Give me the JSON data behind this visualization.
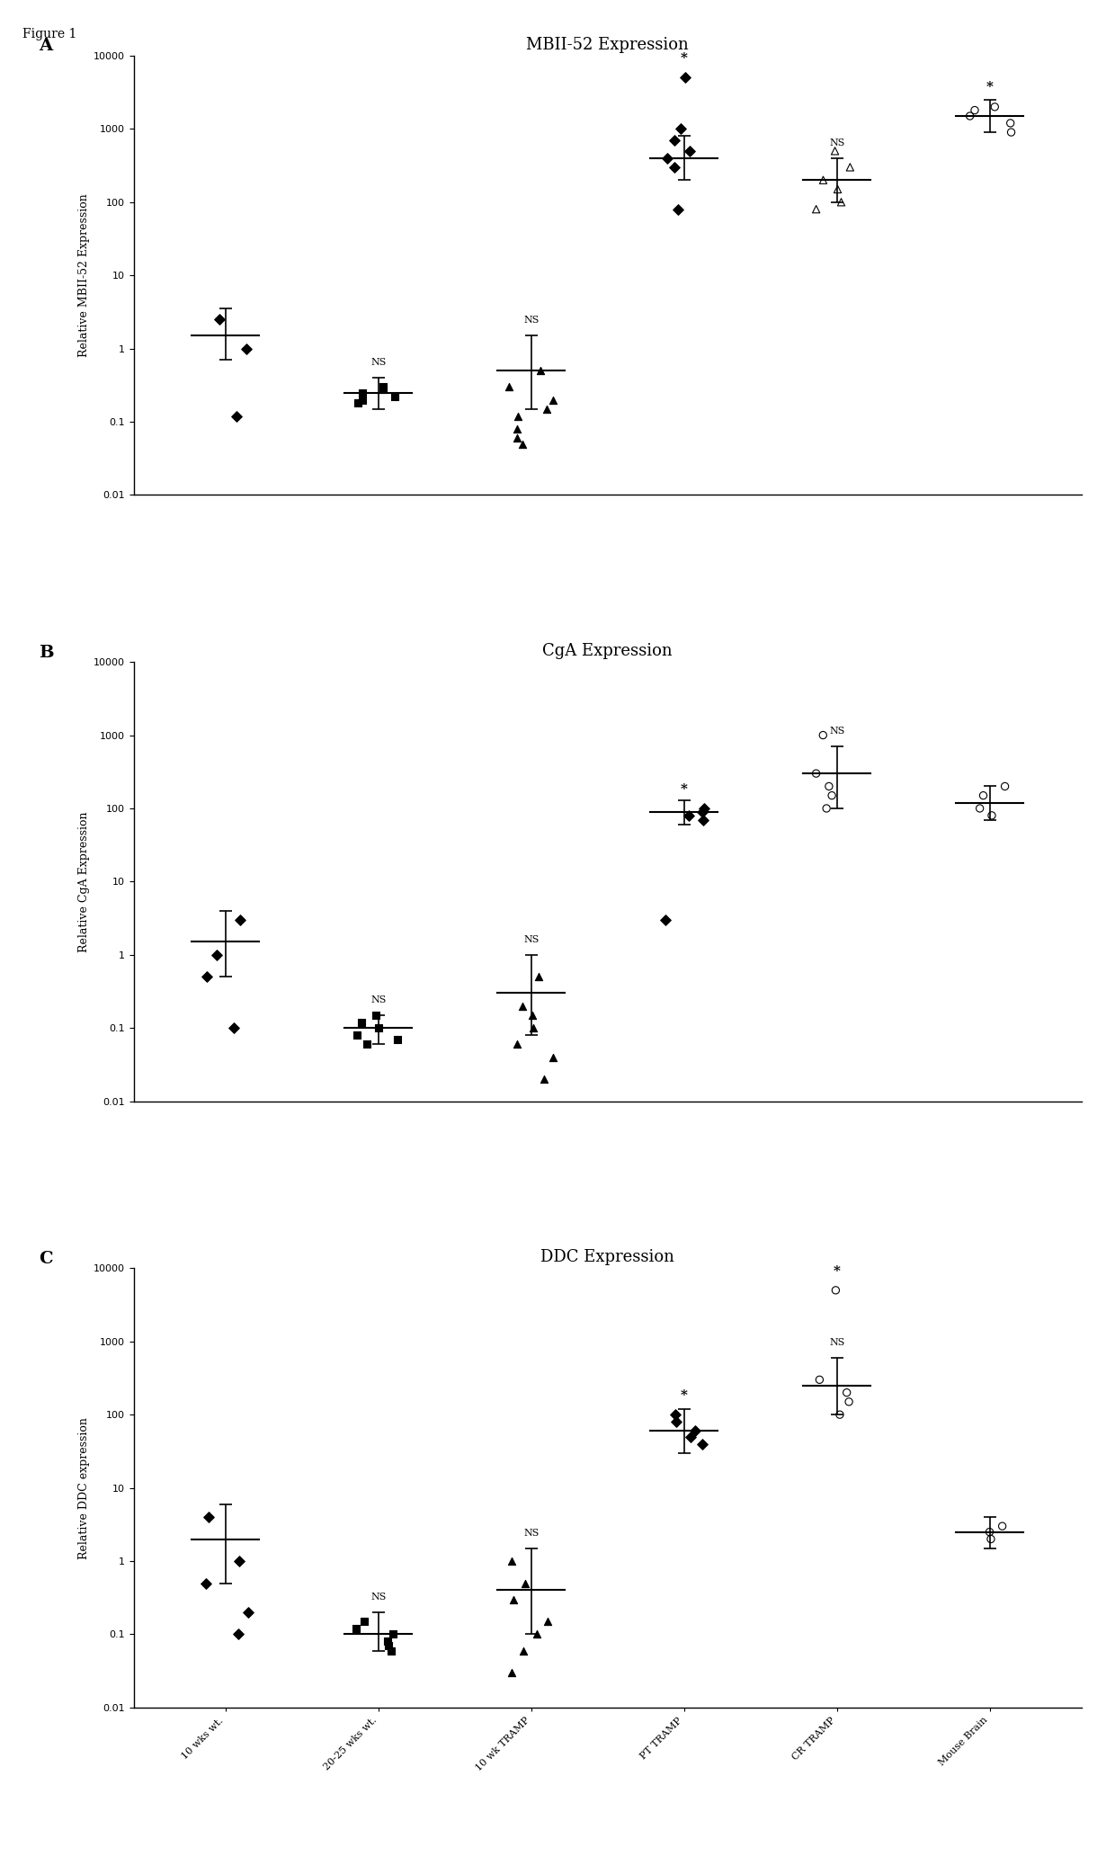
{
  "figure_label": "Figure 1",
  "panels": [
    "A",
    "B",
    "C"
  ],
  "titles": [
    "MBII-52 Expression",
    "CgA Expression",
    "DDC Expression"
  ],
  "ylabels": [
    "Relative MBII-52 Expression",
    "Relative CgA Expression",
    "Relative DDC expression"
  ],
  "categories": [
    "10 wks wt.",
    "20-25 wks wt.",
    "10 wk TRAMP",
    "PT TRAMP",
    "CR TRAMP",
    "Mouse Brain"
  ],
  "ns_labels_A": {
    "1": "NS",
    "2": "NS",
    "4": "NS"
  },
  "ns_labels_B": {
    "1": "NS",
    "2": "NS",
    "4": "NS"
  },
  "ns_labels_C": {
    "1": "NS",
    "2": "NS",
    "4": "NS"
  },
  "star_labels_A": {
    "3": "*",
    "5": "*"
  },
  "star_labels_B": {
    "3": "*"
  },
  "star_labels_C": {
    "3": "*",
    "4": "*"
  },
  "panel_A": {
    "group0": {
      "points": [
        2.5,
        1.0,
        0.12
      ],
      "mean": 1.5,
      "sem_low": 0.7,
      "sem_high": 3.5,
      "marker": "D",
      "filled": true
    },
    "group1": {
      "points": [
        0.3,
        0.25,
        0.2,
        0.18,
        0.22,
        0.28
      ],
      "mean": 0.25,
      "sem_low": 0.15,
      "sem_high": 0.4,
      "marker": "s",
      "filled": true
    },
    "group2": {
      "points": [
        0.5,
        0.3,
        0.2,
        0.15,
        0.12,
        0.08,
        0.06,
        0.05
      ],
      "mean": 0.5,
      "sem_low": 0.15,
      "sem_high": 1.5,
      "marker": "^",
      "filled": true
    },
    "group3": {
      "points": [
        5000,
        1000,
        700,
        500,
        400,
        300,
        80
      ],
      "mean": 400,
      "sem_low": 200,
      "sem_high": 800,
      "marker": "D",
      "filled": true
    },
    "group4": {
      "points": [
        500,
        300,
        200,
        150,
        100,
        80
      ],
      "mean": 200,
      "sem_low": 100,
      "sem_high": 400,
      "marker": "^",
      "filled": false
    },
    "group5": {
      "points": [
        2000,
        1800,
        1500,
        1200,
        900
      ],
      "mean": 1500,
      "sem_low": 900,
      "sem_high": 2500,
      "marker": "o",
      "filled": false
    }
  },
  "panel_B": {
    "group0": {
      "points": [
        3.0,
        1.0,
        0.5,
        0.1
      ],
      "mean": 1.5,
      "sem_low": 0.5,
      "sem_high": 4.0,
      "marker": "D",
      "filled": true
    },
    "group1": {
      "points": [
        0.15,
        0.12,
        0.1,
        0.08,
        0.07,
        0.06
      ],
      "mean": 0.1,
      "sem_low": 0.06,
      "sem_high": 0.15,
      "marker": "s",
      "filled": true
    },
    "group2": {
      "points": [
        0.5,
        0.2,
        0.15,
        0.1,
        0.06,
        0.04,
        0.02
      ],
      "mean": 0.3,
      "sem_low": 0.08,
      "sem_high": 1.0,
      "marker": "^",
      "filled": true
    },
    "group3": {
      "points": [
        100,
        90,
        80,
        70,
        3.0
      ],
      "mean": 90,
      "sem_low": 60,
      "sem_high": 130,
      "marker": "D",
      "filled": true
    },
    "group4": {
      "points": [
        1000,
        300,
        200,
        150,
        100
      ],
      "mean": 300,
      "sem_low": 100,
      "sem_high": 700,
      "marker": "o",
      "filled": false
    },
    "group5": {
      "points": [
        200,
        150,
        100,
        80
      ],
      "mean": 120,
      "sem_low": 70,
      "sem_high": 200,
      "marker": "o",
      "filled": false
    }
  },
  "panel_C": {
    "group0": {
      "points": [
        4.0,
        1.0,
        0.5,
        0.2,
        0.1
      ],
      "mean": 2.0,
      "sem_low": 0.5,
      "sem_high": 6.0,
      "marker": "D",
      "filled": true
    },
    "group1": {
      "points": [
        0.15,
        0.12,
        0.1,
        0.08,
        0.07,
        0.06
      ],
      "mean": 0.1,
      "sem_low": 0.06,
      "sem_high": 0.2,
      "marker": "s",
      "filled": true
    },
    "group2": {
      "points": [
        1.0,
        0.5,
        0.3,
        0.15,
        0.1,
        0.06,
        0.03
      ],
      "mean": 0.4,
      "sem_low": 0.1,
      "sem_high": 1.5,
      "marker": "^",
      "filled": true
    },
    "group3": {
      "points": [
        100,
        80,
        60,
        50,
        40
      ],
      "mean": 60,
      "sem_low": 30,
      "sem_high": 120,
      "marker": "D",
      "filled": true
    },
    "group4": {
      "points": [
        5000,
        300,
        200,
        150,
        100
      ],
      "mean": 250,
      "sem_low": 100,
      "sem_high": 600,
      "marker": "o",
      "filled": false
    },
    "group5": {
      "points": [
        3.0,
        2.5,
        2.0
      ],
      "mean": 2.5,
      "sem_low": 1.5,
      "sem_high": 4.0,
      "marker": "o",
      "filled": false
    }
  },
  "ylim": [
    0.01,
    10000
  ],
  "yticks": [
    0.01,
    0.1,
    1,
    10,
    100,
    1000,
    10000
  ],
  "background_color": "#ffffff",
  "fontsize_title": 13,
  "fontsize_label": 9,
  "fontsize_tick": 8,
  "fontsize_panel": 14,
  "fontsize_ns": 8,
  "fontsize_fig_label": 10
}
